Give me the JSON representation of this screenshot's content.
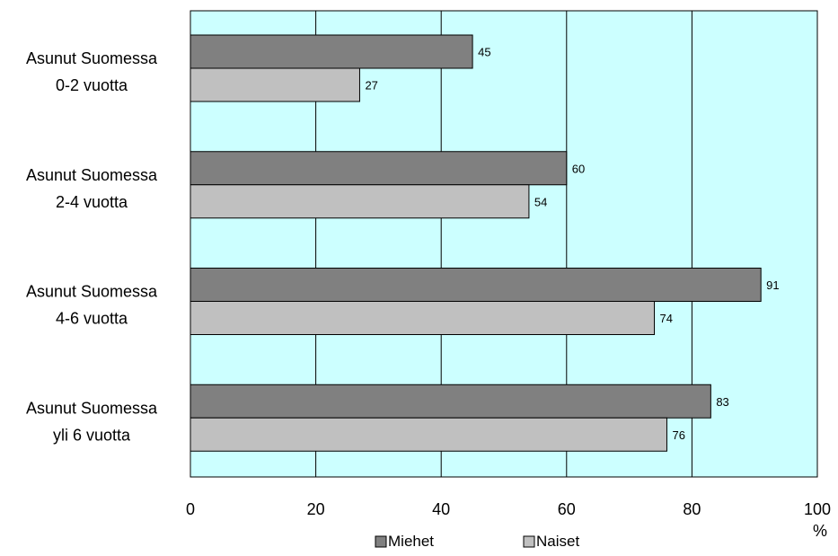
{
  "chart_data": {
    "type": "bar",
    "orientation": "horizontal",
    "categories": [
      [
        "Asunut Suomessa",
        "0-2 vuotta"
      ],
      [
        "Asunut Suomessa",
        "2-4 vuotta"
      ],
      [
        "Asunut Suomessa",
        "4-6 vuotta"
      ],
      [
        "Asunut Suomessa",
        "yli 6 vuotta"
      ]
    ],
    "series": [
      {
        "name": "Miehet",
        "values": [
          45,
          60,
          91,
          83
        ],
        "color": "#808080"
      },
      {
        "name": "Naiset",
        "values": [
          27,
          54,
          74,
          76
        ],
        "color": "#c0c0c0"
      }
    ],
    "data_labels": [
      [
        "45",
        "27"
      ],
      [
        "60",
        "54"
      ],
      [
        "91",
        "74"
      ],
      [
        "83",
        "76"
      ]
    ],
    "xlim": [
      0,
      100
    ],
    "xticks": [
      "0",
      "20",
      "40",
      "60",
      "80",
      "100"
    ],
    "xlabel": "%",
    "grid": "vertical",
    "plot_background": "#ccffff",
    "legend_position": "bottom-center"
  }
}
